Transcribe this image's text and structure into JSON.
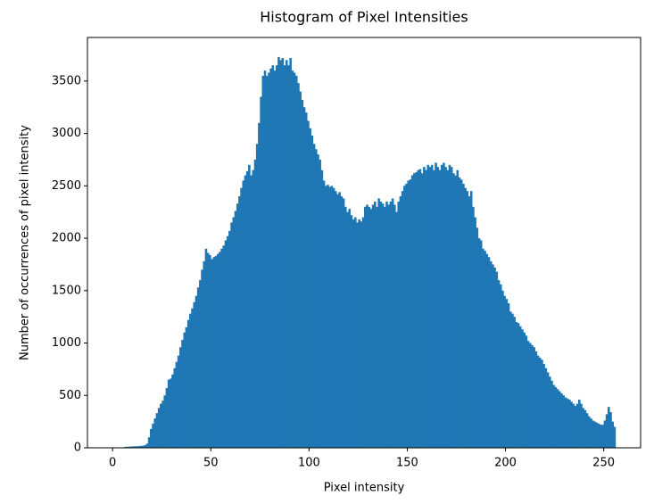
{
  "chart_data": {
    "type": "histogram",
    "title": "Histogram of Pixel Intensities",
    "xlabel": "Pixel intensity",
    "ylabel": "Number of occurrences of pixel intensity",
    "color": "#1f77b4",
    "bins": [
      0,
      1,
      2,
      3,
      4,
      5,
      6,
      7,
      8,
      9,
      10,
      11,
      12,
      13,
      14,
      15,
      16,
      17,
      18,
      19,
      20,
      21,
      22,
      23,
      24,
      25,
      26,
      27,
      28,
      29,
      30,
      31,
      32,
      33,
      34,
      35,
      36,
      37,
      38,
      39,
      40,
      41,
      42,
      43,
      44,
      45,
      46,
      47,
      48,
      49,
      50,
      51,
      52,
      53,
      54,
      55,
      56,
      57,
      58,
      59,
      60,
      61,
      62,
      63,
      64,
      65,
      66,
      67,
      68,
      69,
      70,
      71,
      72,
      73,
      74,
      75,
      76,
      77,
      78,
      79,
      80,
      81,
      82,
      83,
      84,
      85,
      86,
      87,
      88,
      89,
      90,
      91,
      92,
      93,
      94,
      95,
      96,
      97,
      98,
      99,
      100,
      101,
      102,
      103,
      104,
      105,
      106,
      107,
      108,
      109,
      110,
      111,
      112,
      113,
      114,
      115,
      116,
      117,
      118,
      119,
      120,
      121,
      122,
      123,
      124,
      125,
      126,
      127,
      128,
      129,
      130,
      131,
      132,
      133,
      134,
      135,
      136,
      137,
      138,
      139,
      140,
      141,
      142,
      143,
      144,
      145,
      146,
      147,
      148,
      149,
      150,
      151,
      152,
      153,
      154,
      155,
      156,
      157,
      158,
      159,
      160,
      161,
      162,
      163,
      164,
      165,
      166,
      167,
      168,
      169,
      170,
      171,
      172,
      173,
      174,
      175,
      176,
      177,
      178,
      179,
      180,
      181,
      182,
      183,
      184,
      185,
      186,
      187,
      188,
      189,
      190,
      191,
      192,
      193,
      194,
      195,
      196,
      197,
      198,
      199,
      200,
      201,
      202,
      203,
      204,
      205,
      206,
      207,
      208,
      209,
      210,
      211,
      212,
      213,
      214,
      215,
      216,
      217,
      218,
      219,
      220,
      221,
      222,
      223,
      224,
      225,
      226,
      227,
      228,
      229,
      230,
      231,
      232,
      233,
      234,
      235,
      236,
      237,
      238,
      239,
      240,
      241,
      242,
      243,
      244,
      245,
      246,
      247,
      248,
      249,
      250,
      251,
      252,
      253,
      254,
      255,
      256
    ],
    "counts": [
      5,
      0,
      0,
      0,
      0,
      0,
      10,
      10,
      12,
      12,
      14,
      14,
      15,
      16,
      18,
      20,
      25,
      40,
      100,
      180,
      230,
      280,
      330,
      380,
      420,
      450,
      500,
      570,
      650,
      660,
      700,
      760,
      820,
      880,
      960,
      1030,
      1100,
      1150,
      1220,
      1280,
      1330,
      1390,
      1450,
      1530,
      1600,
      1700,
      1780,
      1900,
      1860,
      1840,
      1800,
      1820,
      1830,
      1850,
      1870,
      1900,
      1930,
      1980,
      2020,
      2070,
      2150,
      2200,
      2260,
      2330,
      2400,
      2480,
      2550,
      2600,
      2640,
      2700,
      2600,
      2650,
      2750,
      2900,
      3100,
      3350,
      3550,
      3600,
      3550,
      3580,
      3620,
      3650,
      3600,
      3650,
      3730,
      3700,
      3720,
      3650,
      3700,
      3650,
      3720,
      3600,
      3580,
      3550,
      3480,
      3400,
      3320,
      3250,
      3200,
      3120,
      3050,
      2980,
      2900,
      2850,
      2800,
      2750,
      2650,
      2550,
      2500,
      2510,
      2490,
      2500,
      2480,
      2450,
      2420,
      2440,
      2400,
      2380,
      2300,
      2250,
      2280,
      2220,
      2180,
      2200,
      2150,
      2180,
      2160,
      2200,
      2300,
      2320,
      2300,
      2280,
      2320,
      2350,
      2300,
      2380,
      2350,
      2330,
      2300,
      2350,
      2320,
      2350,
      2380,
      2320,
      2250,
      2350,
      2400,
      2450,
      2500,
      2520,
      2550,
      2560,
      2600,
      2620,
      2630,
      2650,
      2660,
      2620,
      2680,
      2650,
      2700,
      2680,
      2700,
      2650,
      2720,
      2680,
      2650,
      2700,
      2720,
      2680,
      2650,
      2700,
      2680,
      2620,
      2600,
      2650,
      2580,
      2560,
      2520,
      2480,
      2450,
      2400,
      2450,
      2300,
      2200,
      2100,
      2000,
      1980,
      1900,
      1880,
      1850,
      1820,
      1780,
      1750,
      1720,
      1680,
      1600,
      1560,
      1500,
      1450,
      1420,
      1380,
      1300,
      1280,
      1250,
      1200,
      1190,
      1160,
      1130,
      1100,
      1070,
      1020,
      1000,
      980,
      960,
      920,
      880,
      860,
      840,
      800,
      760,
      720,
      680,
      640,
      600,
      580,
      560,
      540,
      520,
      500,
      480,
      470,
      460,
      440,
      420,
      400,
      420,
      460,
      420,
      380,
      360,
      330,
      300,
      280,
      260,
      250,
      240,
      230,
      220,
      220,
      260,
      320,
      390,
      340,
      250,
      200
    ],
    "xlim": [
      -12.8,
      268.8
    ],
    "ylim": [
      0,
      3916
    ],
    "xticks": [
      0,
      50,
      100,
      150,
      200,
      250
    ],
    "yticks": [
      0,
      500,
      1000,
      1500,
      2000,
      2500,
      3000,
      3500
    ]
  }
}
